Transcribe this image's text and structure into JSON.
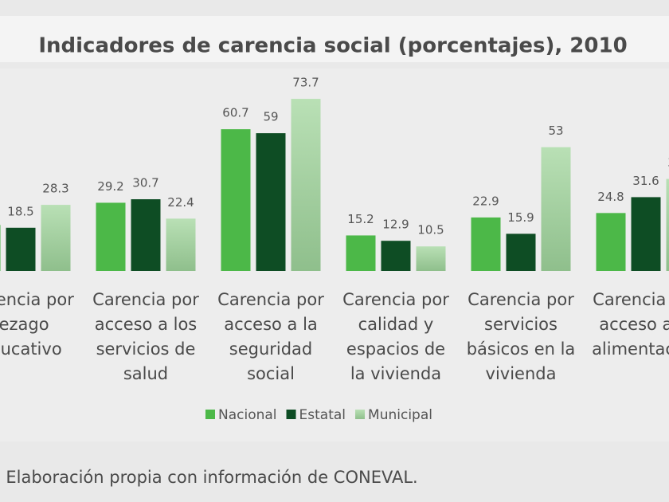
{
  "chart_data": {
    "type": "bar",
    "title": "Indicadores de carencia social (porcentajes), 2010",
    "categories": [
      [
        "Carencia por",
        "rezago",
        "educativo"
      ],
      [
        "Carencia por",
        "acceso a los",
        "servicios de",
        "salud"
      ],
      [
        "Carencia por",
        "acceso a la",
        "seguridad",
        "social"
      ],
      [
        "Carencia por",
        "calidad y",
        "espacios de",
        "la vivienda"
      ],
      [
        "Carencia por",
        "servicios",
        "básicos en la",
        "vivienda"
      ],
      [
        "Carencia por",
        "acceso a la",
        "alimentación"
      ]
    ],
    "series": [
      {
        "name": "Nacional",
        "color": "#4cb848",
        "values": [
          19.7,
          29.2,
          60.7,
          15.2,
          22.9,
          24.8
        ]
      },
      {
        "name": "Estatal",
        "color": "#0e4d24",
        "values": [
          18.5,
          30.7,
          59,
          12.9,
          15.9,
          31.6
        ]
      },
      {
        "name": "Municipal",
        "color": "#a9d6a5",
        "values": [
          28.3,
          22.4,
          73.7,
          10.5,
          53,
          39.4
        ]
      }
    ],
    "ylim": [
      0,
      80
    ],
    "source": "Fuente: Elaboración propia con información de CONEVAL."
  }
}
